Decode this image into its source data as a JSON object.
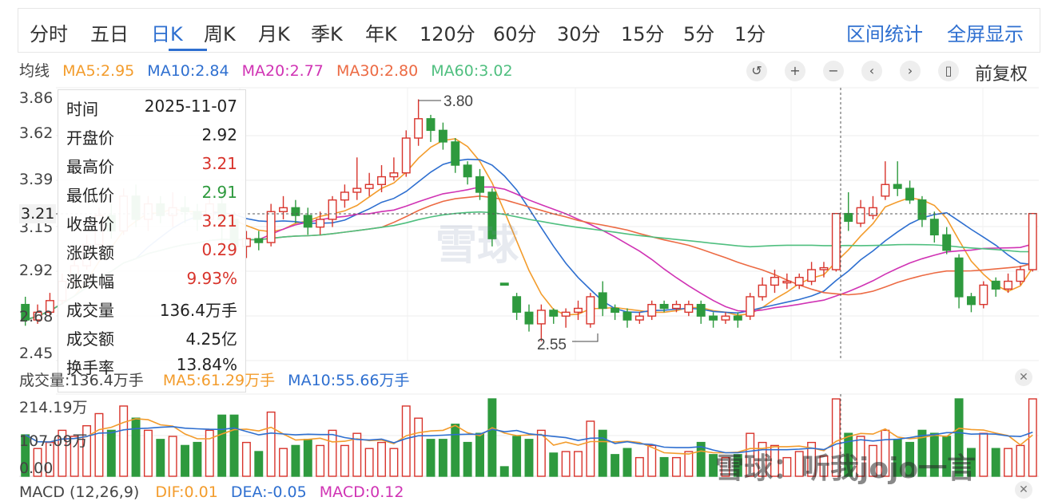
{
  "tabs": [
    {
      "label": "分时"
    },
    {
      "label": "五日"
    },
    {
      "label": "日K",
      "active": true
    },
    {
      "label": "周K"
    },
    {
      "label": "月K"
    },
    {
      "label": "季K"
    },
    {
      "label": "年K"
    },
    {
      "label": "120分"
    },
    {
      "label": "60分"
    },
    {
      "label": "30分"
    },
    {
      "label": "15分"
    },
    {
      "label": "5分"
    },
    {
      "label": "1分"
    }
  ],
  "links": {
    "range_stats": "区间统计",
    "fullscreen": "全屏显示"
  },
  "ma_legend": {
    "title": "均线",
    "items": [
      {
        "text": "MA5:2.95",
        "color": "#f39c2c"
      },
      {
        "text": "MA10:2.84",
        "color": "#2e6fd0"
      },
      {
        "text": "MA20:2.77",
        "color": "#d033b4"
      },
      {
        "text": "MA30:2.80",
        "color": "#ec6a43"
      },
      {
        "text": "MA60:3.02",
        "color": "#4fbf7f"
      }
    ]
  },
  "controls": {
    "adjust": "前复权"
  },
  "price_axis": {
    "labels": [
      "3.86",
      "3.62",
      "3.39",
      "3.15",
      "2.92",
      "2.68",
      "2.45"
    ],
    "current": "3.21"
  },
  "annotations": {
    "high": "3.80",
    "low": "2.55"
  },
  "tooltip": {
    "rows": [
      {
        "k": "时间",
        "v": "2025-11-07",
        "color": "#222"
      },
      {
        "k": "开盘价",
        "v": "2.92",
        "color": "#222"
      },
      {
        "k": "最高价",
        "v": "3.21",
        "color": "#d8342c"
      },
      {
        "k": "最低价",
        "v": "2.91",
        "color": "#2e9a3e"
      },
      {
        "k": "收盘价",
        "v": "3.21",
        "color": "#d8342c"
      },
      {
        "k": "涨跌额",
        "v": "0.29",
        "color": "#d8342c"
      },
      {
        "k": "涨跌幅",
        "v": "9.93%",
        "color": "#d8342c"
      },
      {
        "k": "成交量",
        "v": "136.4万手",
        "color": "#222"
      },
      {
        "k": "成交额",
        "v": "4.25亿",
        "color": "#222"
      },
      {
        "k": "换手率",
        "v": "13.84%",
        "color": "#222"
      }
    ]
  },
  "volume_legend": {
    "vol": "成交量:136.4万手",
    "ma5": "MA5:61.29万手",
    "ma10": "MA10:55.66万手"
  },
  "volume_axis": {
    "labels": [
      "214.19万",
      "107.09万",
      "0.00"
    ]
  },
  "macd_legend": {
    "title": "MACD (12,26,9)",
    "dif": "DIF:0.01",
    "dea": "DEA:-0.05",
    "macd": "MACD:0.12"
  },
  "watermark": {
    "brand": "雪球",
    "text": "雪球：听我jojo一言"
  },
  "colors": {
    "up": "#d8342c",
    "down": "#2e9a3e",
    "accent": "#2e6fd0"
  },
  "chart_data": {
    "type": "candlestick",
    "ylim": [
      2.45,
      3.86
    ],
    "candles": [
      [
        2.74,
        2.66,
        2.78,
        2.63
      ],
      [
        2.66,
        2.7,
        2.74,
        2.64
      ],
      [
        2.7,
        2.76,
        2.8,
        2.68
      ],
      [
        2.76,
        2.86,
        2.9,
        2.74
      ],
      [
        2.86,
        2.94,
        2.98,
        2.84
      ],
      [
        2.94,
        3.05,
        3.1,
        2.92
      ],
      [
        3.05,
        3.2,
        3.24,
        3.02
      ],
      [
        3.2,
        3.12,
        3.26,
        3.08
      ],
      [
        3.12,
        3.3,
        3.34,
        3.1
      ],
      [
        3.3,
        3.18,
        3.36,
        3.14
      ],
      [
        3.18,
        3.26,
        3.3,
        3.12
      ],
      [
        3.26,
        3.2,
        3.3,
        3.16
      ],
      [
        3.2,
        3.24,
        3.32,
        3.14
      ],
      [
        3.24,
        3.22,
        3.3,
        3.16
      ],
      [
        3.22,
        3.18,
        3.26,
        3.12
      ],
      [
        3.18,
        3.26,
        3.32,
        3.14
      ],
      [
        3.26,
        3.18,
        3.3,
        3.02
      ],
      [
        3.18,
        3.04,
        3.22,
        3.0
      ],
      [
        3.04,
        3.08,
        3.12,
        2.98
      ],
      [
        3.08,
        3.06,
        3.12,
        3.02
      ],
      [
        3.06,
        3.22,
        3.26,
        3.04
      ],
      [
        3.22,
        3.24,
        3.3,
        3.18
      ],
      [
        3.24,
        3.2,
        3.28,
        3.16
      ],
      [
        3.2,
        3.14,
        3.24,
        3.1
      ],
      [
        3.14,
        3.18,
        3.22,
        3.1
      ],
      [
        3.18,
        3.28,
        3.3,
        3.14
      ],
      [
        3.28,
        3.32,
        3.36,
        3.24
      ],
      [
        3.32,
        3.34,
        3.5,
        3.28
      ],
      [
        3.34,
        3.36,
        3.42,
        3.3
      ],
      [
        3.36,
        3.4,
        3.46,
        3.32
      ],
      [
        3.4,
        3.42,
        3.5,
        3.38
      ],
      [
        3.42,
        3.6,
        3.64,
        3.4
      ],
      [
        3.6,
        3.7,
        3.8,
        3.56
      ],
      [
        3.7,
        3.64,
        3.72,
        3.58
      ],
      [
        3.64,
        3.58,
        3.68,
        3.54
      ],
      [
        3.58,
        3.46,
        3.6,
        3.42
      ],
      [
        3.46,
        3.4,
        3.48,
        3.36
      ],
      [
        3.4,
        3.32,
        3.44,
        3.28
      ],
      [
        3.32,
        3.08,
        3.34,
        3.04
      ],
      [
        2.85,
        2.84,
        2.85,
        2.84
      ],
      [
        2.78,
        2.7,
        2.8,
        2.66
      ],
      [
        2.7,
        2.64,
        2.74,
        2.6
      ],
      [
        2.64,
        2.71,
        2.74,
        2.55
      ],
      [
        2.71,
        2.68,
        2.72,
        2.64
      ],
      [
        2.68,
        2.7,
        2.72,
        2.62
      ],
      [
        2.7,
        2.72,
        2.76,
        2.66
      ],
      [
        2.64,
        2.78,
        2.8,
        2.62
      ],
      [
        2.8,
        2.72,
        2.86,
        2.68
      ],
      [
        2.72,
        2.7,
        2.74,
        2.66
      ],
      [
        2.7,
        2.66,
        2.72,
        2.62
      ],
      [
        2.66,
        2.68,
        2.7,
        2.64
      ],
      [
        2.68,
        2.74,
        2.76,
        2.66
      ],
      [
        2.74,
        2.72,
        2.76,
        2.7
      ],
      [
        2.72,
        2.74,
        2.76,
        2.7
      ],
      [
        2.7,
        2.74,
        2.76,
        2.68
      ],
      [
        2.74,
        2.68,
        2.76,
        2.64
      ],
      [
        2.68,
        2.66,
        2.7,
        2.62
      ],
      [
        2.66,
        2.68,
        2.7,
        2.64
      ],
      [
        2.68,
        2.66,
        2.7,
        2.62
      ],
      [
        2.68,
        2.78,
        2.8,
        2.66
      ],
      [
        2.78,
        2.84,
        2.88,
        2.76
      ],
      [
        2.84,
        2.88,
        2.92,
        2.8
      ],
      [
        2.86,
        2.86,
        2.9,
        2.82
      ],
      [
        2.84,
        2.88,
        2.9,
        2.82
      ],
      [
        2.86,
        2.92,
        2.96,
        2.84
      ],
      [
        2.92,
        2.93,
        2.96,
        2.88
      ],
      [
        2.92,
        3.21,
        3.21,
        2.91
      ],
      [
        3.21,
        3.17,
        3.32,
        3.12
      ],
      [
        3.16,
        3.24,
        3.28,
        3.14
      ],
      [
        3.2,
        3.24,
        3.3,
        3.18
      ],
      [
        3.3,
        3.36,
        3.48,
        3.28
      ],
      [
        3.36,
        3.34,
        3.48,
        3.3
      ],
      [
        3.34,
        3.28,
        3.38,
        3.26
      ],
      [
        3.28,
        3.18,
        3.3,
        3.14
      ],
      [
        3.18,
        3.1,
        3.22,
        3.06
      ],
      [
        3.1,
        3.02,
        3.14,
        3.0
      ],
      [
        2.98,
        2.78,
        3.0,
        2.72
      ],
      [
        2.78,
        2.74,
        2.8,
        2.7
      ],
      [
        2.74,
        2.84,
        2.86,
        2.72
      ],
      [
        2.86,
        2.82,
        2.88,
        2.78
      ],
      [
        2.82,
        2.86,
        2.9,
        2.8
      ],
      [
        2.86,
        2.92,
        2.94,
        2.84
      ],
      [
        2.92,
        3.21,
        3.21,
        2.91
      ]
    ],
    "volume_ylim": [
      0,
      214.19
    ]
  }
}
